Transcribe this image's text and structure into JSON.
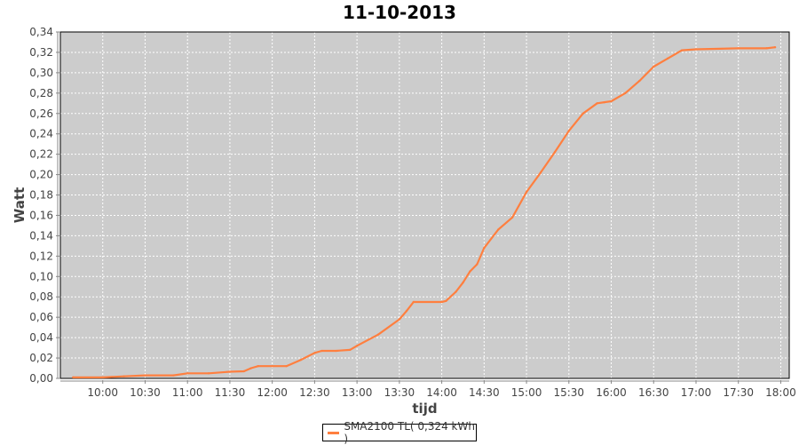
{
  "chart_data": {
    "type": "line",
    "title": "11-10-2013",
    "xlabel": "tijd",
    "ylabel": "Watt",
    "xlim": [
      "09:30",
      "18:06"
    ],
    "ylim": [
      0,
      0.34
    ],
    "grid": true,
    "legend_position": "bottom",
    "x_ticks": [
      "10:00",
      "10:30",
      "11:00",
      "11:30",
      "12:00",
      "12:30",
      "13:00",
      "13:30",
      "14:00",
      "14:30",
      "15:00",
      "15:30",
      "16:00",
      "16:30",
      "17:00",
      "17:30",
      "18:00"
    ],
    "y_ticks": [
      "0,00",
      "0,02",
      "0,04",
      "0,06",
      "0,08",
      "0,10",
      "0,12",
      "0,14",
      "0,16",
      "0,18",
      "0,20",
      "0,22",
      "0,24",
      "0,26",
      "0,28",
      "0,30",
      "0,32",
      "0,34"
    ],
    "colors": {
      "series": "#ff7f3f",
      "plot_background": "#cccccc",
      "grid": "#ffffff"
    },
    "series": [
      {
        "name": "SMA2100 TL( 0,324 kWh )",
        "x": [
          "09:39",
          "10:00",
          "10:15",
          "10:30",
          "10:50",
          "11:00",
          "11:15",
          "11:30",
          "11:40",
          "11:45",
          "11:50",
          "12:00",
          "12:10",
          "12:20",
          "12:30",
          "12:35",
          "12:45",
          "12:55",
          "13:00",
          "13:15",
          "13:30",
          "13:35",
          "13:40",
          "14:00",
          "14:03",
          "14:10",
          "14:15",
          "14:20",
          "14:25",
          "14:30",
          "14:40",
          "14:50",
          "15:00",
          "15:10",
          "15:20",
          "15:30",
          "15:40",
          "15:50",
          "15:55",
          "16:00",
          "16:10",
          "16:20",
          "16:30",
          "16:40",
          "16:50",
          "17:00",
          "17:30",
          "17:50",
          "17:56"
        ],
        "values": [
          0.001,
          0.001,
          0.002,
          0.003,
          0.003,
          0.005,
          0.005,
          0.0065,
          0.007,
          0.01,
          0.012,
          0.012,
          0.012,
          0.018,
          0.025,
          0.027,
          0.027,
          0.028,
          0.032,
          0.043,
          0.058,
          0.066,
          0.075,
          0.075,
          0.076,
          0.085,
          0.094,
          0.105,
          0.112,
          0.128,
          0.146,
          0.158,
          0.183,
          0.202,
          0.222,
          0.243,
          0.26,
          0.27,
          0.271,
          0.272,
          0.28,
          0.292,
          0.306,
          0.314,
          0.322,
          0.323,
          0.324,
          0.324,
          0.325
        ]
      }
    ]
  }
}
